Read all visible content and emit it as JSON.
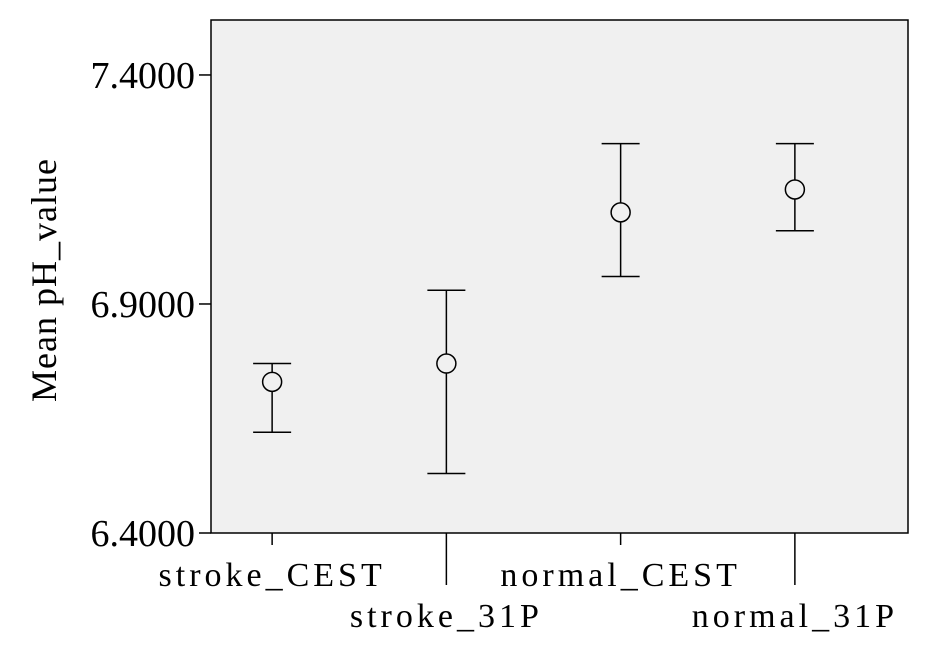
{
  "chart_data": {
    "type": "scatter",
    "title": "",
    "xlabel": "",
    "ylabel": "Mean pH_value",
    "ylim": [
      6.4,
      7.52
    ],
    "yticks": [
      "6.4000",
      "6.9000",
      "7.4000"
    ],
    "categories": [
      "stroke_CEST",
      "stroke_31P",
      "normal_CEST",
      "normal_31P"
    ],
    "series": [
      {
        "values": [
          6.73,
          6.77,
          7.1,
          7.15
        ],
        "error_low": [
          6.62,
          6.53,
          6.96,
          7.06
        ],
        "error_high": [
          6.77,
          6.93,
          7.25,
          7.25
        ]
      }
    ],
    "grid": false,
    "legend": "none",
    "colors": {
      "plot_background": "#f0f0f0",
      "marks": "#000000"
    }
  }
}
